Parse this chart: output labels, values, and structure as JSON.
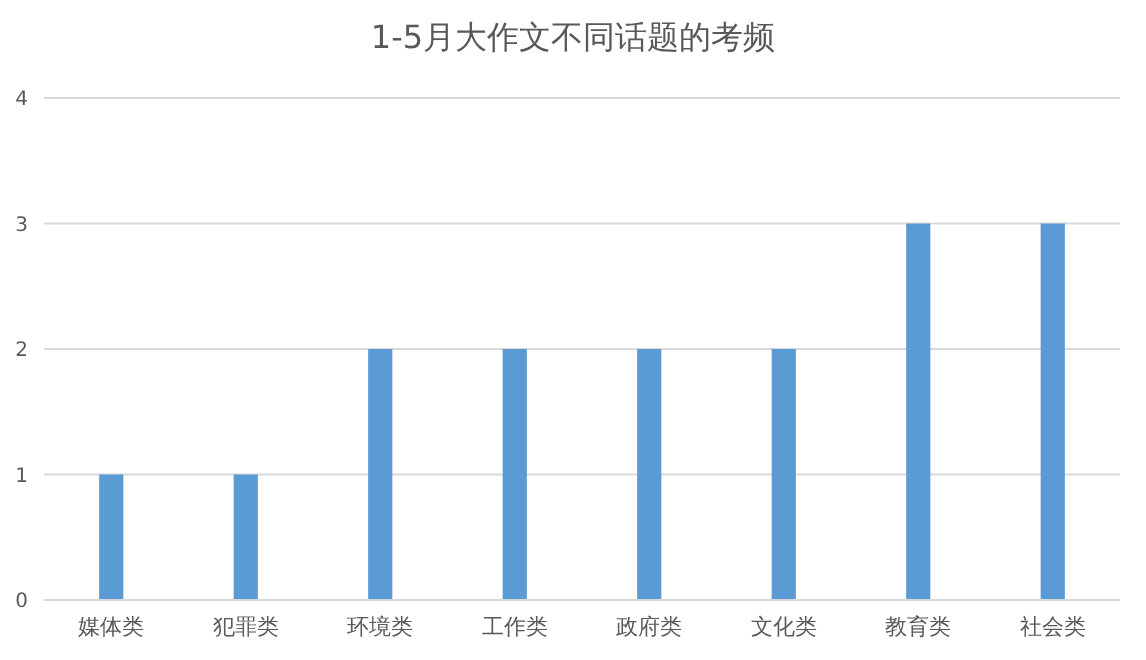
{
  "chart_data": {
    "type": "bar",
    "title": "1-5月大作文不同话题的考频",
    "categories": [
      "媒体类",
      "犯罪类",
      "环境类",
      "工作类",
      "政府类",
      "文化类",
      "教育类",
      "社会类"
    ],
    "values": [
      1,
      1,
      2,
      2,
      2,
      2,
      3,
      3
    ],
    "color": "#5b9bd5",
    "ylim": [
      0,
      4
    ],
    "yticks": [
      0,
      1,
      2,
      3,
      4
    ],
    "grid": "y"
  }
}
